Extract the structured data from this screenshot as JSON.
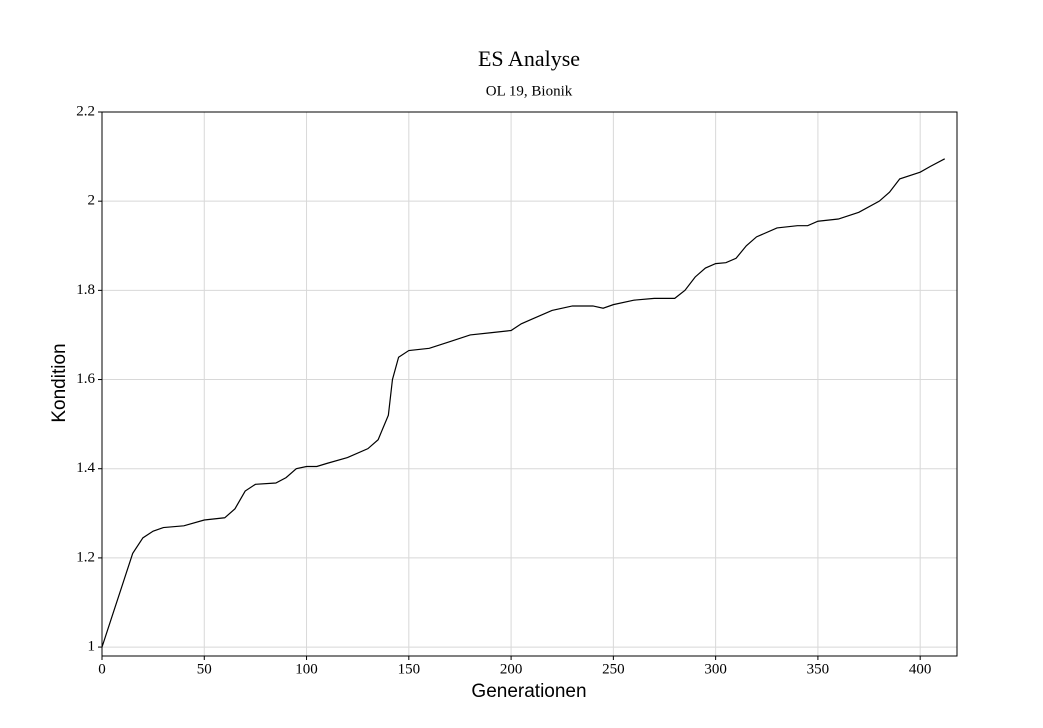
{
  "chart_data": {
    "type": "line",
    "title": "ES Analyse",
    "subtitle": "OL 19, Bionik",
    "x_label": "Generationen",
    "y_label": "Kondition",
    "x": [
      0,
      5,
      10,
      15,
      20,
      25,
      30,
      40,
      50,
      60,
      65,
      70,
      75,
      85,
      90,
      95,
      100,
      105,
      110,
      120,
      130,
      135,
      140,
      142,
      145,
      150,
      160,
      170,
      180,
      190,
      200,
      205,
      210,
      220,
      230,
      240,
      245,
      250,
      260,
      270,
      280,
      285,
      290,
      295,
      300,
      305,
      310,
      315,
      320,
      330,
      340,
      345,
      350,
      360,
      370,
      380,
      385,
      390,
      400,
      405,
      412
    ],
    "series": [
      {
        "name": "Kondition",
        "color": "#000000",
        "values": [
          1.0,
          1.07,
          1.14,
          1.21,
          1.245,
          1.26,
          1.268,
          1.272,
          1.285,
          1.29,
          1.31,
          1.35,
          1.365,
          1.368,
          1.38,
          1.4,
          1.405,
          1.405,
          1.412,
          1.425,
          1.445,
          1.465,
          1.52,
          1.6,
          1.65,
          1.665,
          1.67,
          1.685,
          1.7,
          1.705,
          1.71,
          1.725,
          1.735,
          1.755,
          1.765,
          1.765,
          1.76,
          1.768,
          1.778,
          1.782,
          1.782,
          1.8,
          1.83,
          1.85,
          1.86,
          1.862,
          1.872,
          1.9,
          1.92,
          1.94,
          1.945,
          1.945,
          1.955,
          1.96,
          1.975,
          2.0,
          2.02,
          2.05,
          2.065,
          2.078,
          2.095
        ]
      }
    ],
    "xlim": [
      0,
      418
    ],
    "ylim": [
      0.98,
      2.2
    ],
    "xticks": [
      0,
      50,
      100,
      150,
      200,
      250,
      300,
      350,
      400
    ],
    "yticks": [
      1,
      1.2,
      1.4,
      1.6,
      1.8,
      2,
      2.2
    ],
    "grid": true
  }
}
